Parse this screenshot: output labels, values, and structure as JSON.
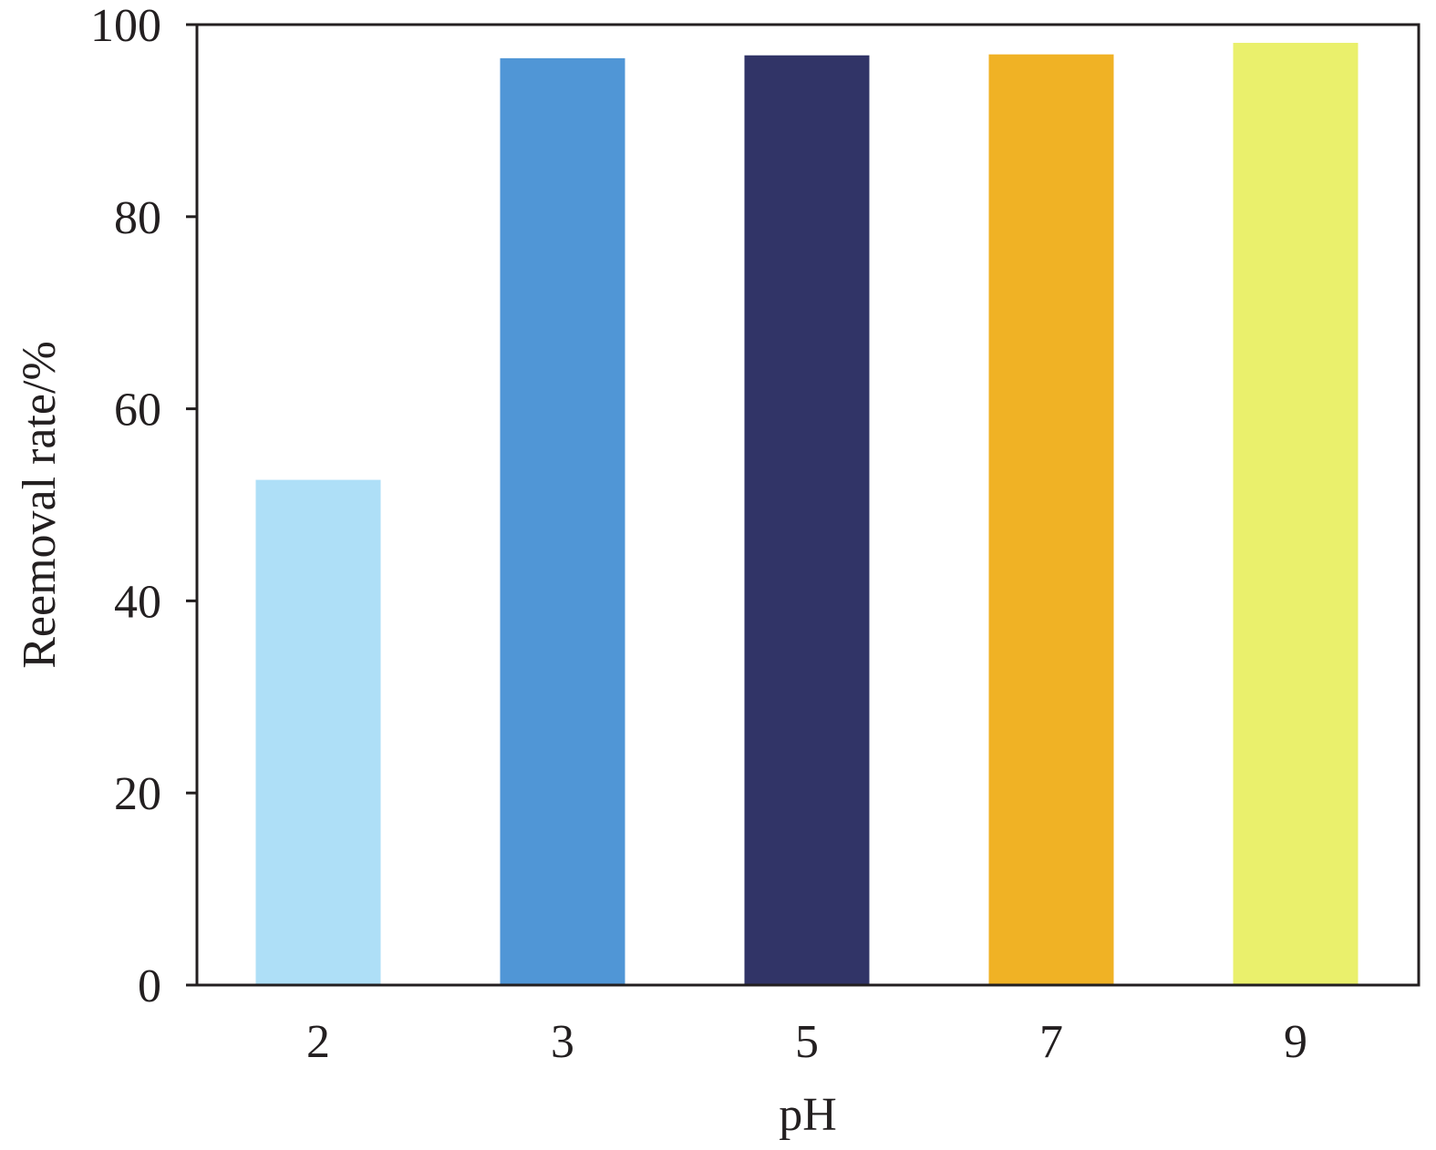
{
  "chart_data": {
    "type": "bar",
    "categories": [
      "2",
      "3",
      "5",
      "7",
      "9"
    ],
    "values": [
      52.6,
      96.5,
      96.8,
      96.9,
      98.1
    ],
    "colors": [
      "#aedff7",
      "#5096d6",
      "#313467",
      "#f0b225",
      "#eaf06c"
    ],
    "xlabel": "pH",
    "ylabel": "Reemoval rate/%",
    "ylim": [
      0,
      100
    ],
    "yticks": [
      "0",
      "20",
      "40",
      "60",
      "80",
      "100"
    ],
    "grid": false,
    "legend": null
  }
}
